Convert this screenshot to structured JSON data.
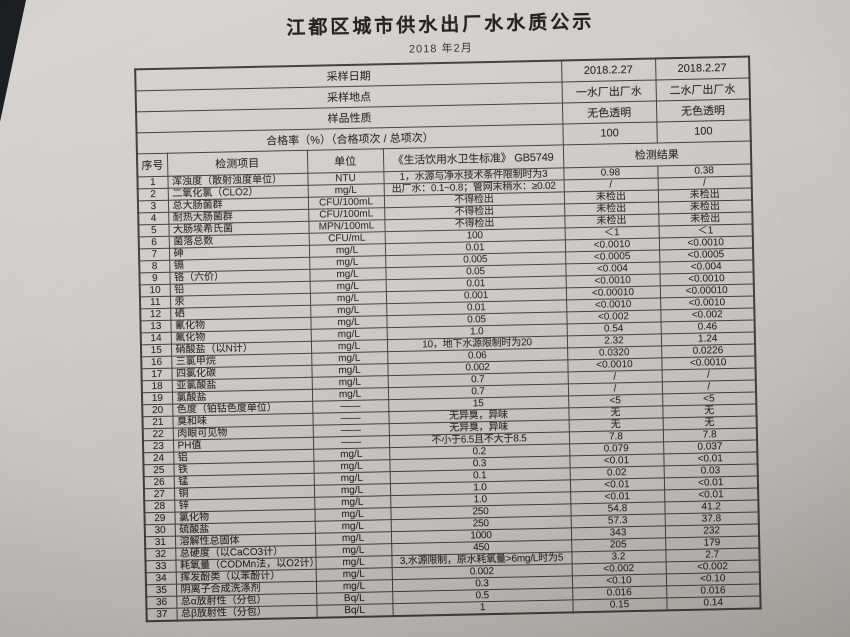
{
  "colors": {
    "paper_light": "#d8d6d3",
    "paper_dark": "#aeaca7",
    "ink": "#262626",
    "line": "#3e3d3a"
  },
  "header": {
    "title": "江都区城市供水出厂水水质公示",
    "subtitle": "2018 年2月"
  },
  "info_rows": [
    {
      "label": "采样日期",
      "plant1": "2018.2.27",
      "plant2": "2018.2.27"
    },
    {
      "label": "采样地点",
      "plant1": "一水厂出厂水",
      "plant2": "二水厂出厂水"
    },
    {
      "label": "样品性质",
      "plant1": "无色透明",
      "plant2": "无色透明"
    },
    {
      "label": "合格率（%）（合格项次 / 总项次）",
      "plant1": "100",
      "plant2": "100"
    }
  ],
  "table": {
    "columns": {
      "seq": "序号",
      "item": "检测项目",
      "unit": "单位",
      "standard": "《生活饮用水卫生标准》 GB5749",
      "result": "检测结果"
    },
    "rows": [
      {
        "seq": "1",
        "item": "浑浊度（散射浊度单位）",
        "unit": "NTU",
        "standard": "1，水源与净水技术条件限制时为3",
        "plant1": "0.98",
        "plant2": "0.38"
      },
      {
        "seq": "2",
        "item": "二氧化氯（CLO2）",
        "unit": "mg/L",
        "standard": "出厂水：0.1~0.8；管网末稍水：≥0.02",
        "plant1": "/",
        "plant2": "/"
      },
      {
        "seq": "3",
        "item": "总大肠菌群",
        "unit": "CFU/100mL",
        "standard": "不得检出",
        "plant1": "未检出",
        "plant2": "未检出"
      },
      {
        "seq": "4",
        "item": "耐热大肠菌群",
        "unit": "CFU/100mL",
        "standard": "不得检出",
        "plant1": "未检出",
        "plant2": "未检出"
      },
      {
        "seq": "5",
        "item": "大肠埃希氏菌",
        "unit": "MPN/100mL",
        "standard": "不得检出",
        "plant1": "未检出",
        "plant2": "未检出"
      },
      {
        "seq": "6",
        "item": "菌落总数",
        "unit": "CFU/mL",
        "standard": "100",
        "plant1": "＜1",
        "plant2": "＜1"
      },
      {
        "seq": "7",
        "item": "砷",
        "unit": "mg/L",
        "standard": "0.01",
        "plant1": "<0.0010",
        "plant2": "<0.0010"
      },
      {
        "seq": "8",
        "item": "镉",
        "unit": "mg/L",
        "standard": "0.005",
        "plant1": "<0.0005",
        "plant2": "<0.0005"
      },
      {
        "seq": "9",
        "item": "铬（六价）",
        "unit": "mg/L",
        "standard": "0.05",
        "plant1": "<0.004",
        "plant2": "<0.004"
      },
      {
        "seq": "10",
        "item": "铅",
        "unit": "mg/L",
        "standard": "0.01",
        "plant1": "<0.0010",
        "plant2": "<0.0010"
      },
      {
        "seq": "11",
        "item": "汞",
        "unit": "mg/L",
        "standard": "0.001",
        "plant1": "<0.00010",
        "plant2": "<0.00010"
      },
      {
        "seq": "12",
        "item": "硒",
        "unit": "mg/L",
        "standard": "0.01",
        "plant1": "<0.0010",
        "plant2": "<0.0010"
      },
      {
        "seq": "13",
        "item": "氰化物",
        "unit": "mg/L",
        "standard": "0.05",
        "plant1": "<0.002",
        "plant2": "<0.002"
      },
      {
        "seq": "14",
        "item": "氟化物",
        "unit": "mg/L",
        "standard": "1.0",
        "plant1": "0.54",
        "plant2": "0.46"
      },
      {
        "seq": "15",
        "item": "硝酸盐（以N计）",
        "unit": "mg/L",
        "standard": "10，地下水源限制时为20",
        "plant1": "2.32",
        "plant2": "1.24"
      },
      {
        "seq": "16",
        "item": "三氯甲烷",
        "unit": "mg/L",
        "standard": "0.06",
        "plant1": "0.0320",
        "plant2": "0.0226"
      },
      {
        "seq": "17",
        "item": "四氯化碳",
        "unit": "mg/L",
        "standard": "0.002",
        "plant1": "<0.0010",
        "plant2": "<0.0010"
      },
      {
        "seq": "18",
        "item": "亚氯酸盐",
        "unit": "mg/L",
        "standard": "0.7",
        "plant1": "/",
        "plant2": "/"
      },
      {
        "seq": "19",
        "item": "氯酸盐",
        "unit": "mg/L",
        "standard": "0.7",
        "plant1": "/",
        "plant2": "/"
      },
      {
        "seq": "20",
        "item": "色度（铂钴色度单位）",
        "unit": "——",
        "standard": "15",
        "plant1": "<5",
        "plant2": "<5"
      },
      {
        "seq": "21",
        "item": "臭和味",
        "unit": "——",
        "standard": "无异臭，异味",
        "plant1": "无",
        "plant2": "无"
      },
      {
        "seq": "22",
        "item": "肉眼可见物",
        "unit": "——",
        "standard": "无异臭，异味",
        "plant1": "无",
        "plant2": "无"
      },
      {
        "seq": "23",
        "item": "PH值",
        "unit": "——",
        "standard": "不小于6.5且不大于8.5",
        "plant1": "7.8",
        "plant2": "7.8"
      },
      {
        "seq": "24",
        "item": "铝",
        "unit": "mg/L",
        "standard": "0.2",
        "plant1": "0.079",
        "plant2": "0.037"
      },
      {
        "seq": "25",
        "item": "铁",
        "unit": "mg/L",
        "standard": "0.3",
        "plant1": "<0.01",
        "plant2": "<0.01"
      },
      {
        "seq": "26",
        "item": "锰",
        "unit": "mg/L",
        "standard": "0.1",
        "plant1": "0.02",
        "plant2": "0.03"
      },
      {
        "seq": "27",
        "item": "铜",
        "unit": "mg/L",
        "standard": "1.0",
        "plant1": "<0.01",
        "plant2": "<0.01"
      },
      {
        "seq": "28",
        "item": "锌",
        "unit": "mg/L",
        "standard": "1.0",
        "plant1": "<0.01",
        "plant2": "<0.01"
      },
      {
        "seq": "29",
        "item": "氯化物",
        "unit": "mg/L",
        "standard": "250",
        "plant1": "54.8",
        "plant2": "41.2"
      },
      {
        "seq": "30",
        "item": "硫酸盐",
        "unit": "mg/L",
        "standard": "250",
        "plant1": "57.3",
        "plant2": "37.8"
      },
      {
        "seq": "31",
        "item": "溶解性总固体",
        "unit": "mg/L",
        "standard": "1000",
        "plant1": "343",
        "plant2": "232"
      },
      {
        "seq": "32",
        "item": "总硬度（以CaCO3计）",
        "unit": "mg/L",
        "standard": "450",
        "plant1": "205",
        "plant2": "179"
      },
      {
        "seq": "33",
        "item": "耗氧量（CODMn法，以O2计）",
        "unit": "mg/L",
        "standard": "3,水源限制，原水耗氧量>6mg/L时为5",
        "plant1": "3.2",
        "plant2": "2.7"
      },
      {
        "seq": "34",
        "item": "挥发酚类（以苯酚计）",
        "unit": "mg/L",
        "standard": "0.002",
        "plant1": "<0.002",
        "plant2": "<0.002"
      },
      {
        "seq": "35",
        "item": "阴离子合成洗涤剂",
        "unit": "mg/L",
        "standard": "0.3",
        "plant1": "<0.10",
        "plant2": "<0.10"
      },
      {
        "seq": "36",
        "item": "总α放射性（分包）",
        "unit": "Bq/L",
        "standard": "0.5",
        "plant1": "0.016",
        "plant2": "0.016"
      },
      {
        "seq": "37",
        "item": "总β放射性（分包）",
        "unit": "Bq/L",
        "standard": "1",
        "plant1": "0.15",
        "plant2": "0.14"
      }
    ]
  }
}
